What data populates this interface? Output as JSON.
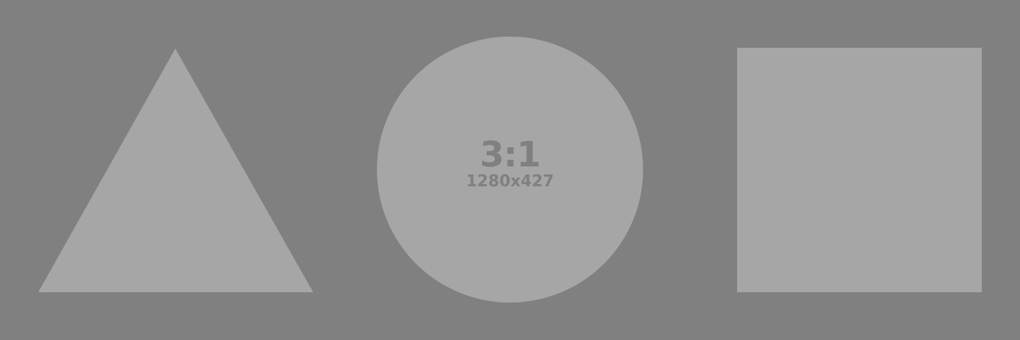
{
  "placeholder": {
    "ratio_label": "3:1",
    "size_label": "1280x427"
  },
  "colors": {
    "background": "#808080",
    "shape_fill": "#a6a6a6",
    "text": "#808080"
  },
  "shapes": {
    "left": "triangle",
    "center": "circle",
    "right": "square"
  }
}
